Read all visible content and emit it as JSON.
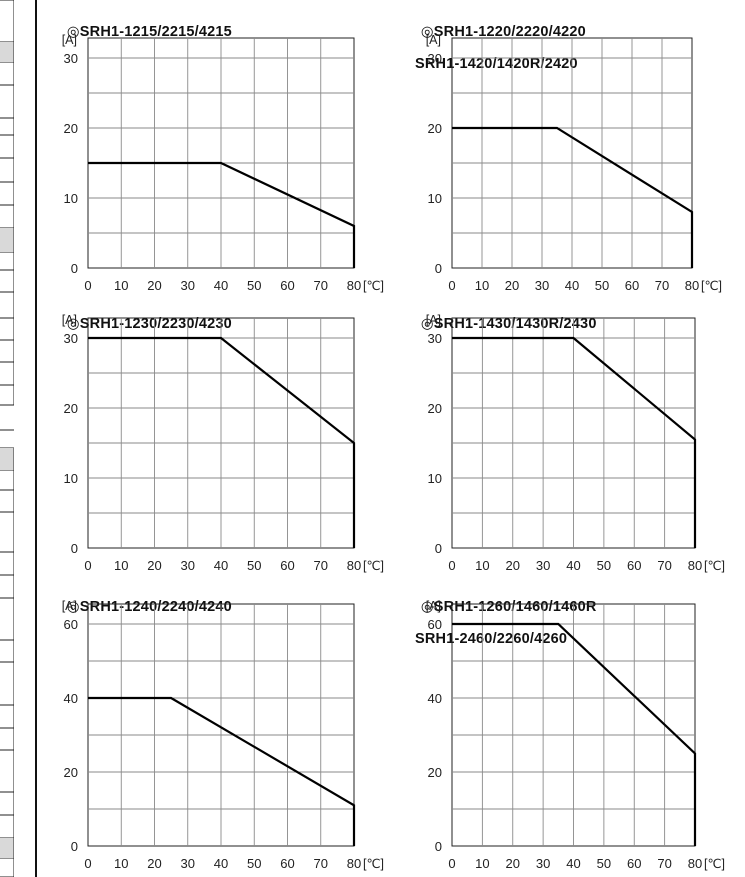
{
  "charts_meta": {
    "axis_unit_y": "[A]",
    "axis_unit_x": "[℃]"
  },
  "chart_data": [
    {
      "type": "line",
      "title": "◎SRH1-1215/2215/4215",
      "subtitle": "",
      "ylabel": "[A]",
      "xlabel": "[℃]",
      "xlim": [
        0,
        80
      ],
      "ylim": [
        0,
        30
      ],
      "xticks": [
        0,
        10,
        20,
        30,
        40,
        50,
        60,
        70,
        80
      ],
      "yticks": [
        0,
        10,
        20,
        30
      ],
      "grid": true,
      "series": [
        {
          "x": [
            0,
            40,
            80,
            80
          ],
          "y": [
            15,
            15,
            6,
            0
          ]
        }
      ]
    },
    {
      "type": "line",
      "title": "◎SRH1-1220/2220/4220",
      "subtitle": "SRH1-1420/1420R/2420",
      "ylabel": "[A]",
      "xlabel": "[℃]",
      "xlim": [
        0,
        80
      ],
      "ylim": [
        0,
        30
      ],
      "xticks": [
        0,
        10,
        20,
        30,
        40,
        50,
        60,
        70,
        80
      ],
      "yticks": [
        0,
        10,
        20,
        30
      ],
      "grid": true,
      "series": [
        {
          "x": [
            0,
            35,
            80,
            80
          ],
          "y": [
            20,
            20,
            8,
            0
          ]
        }
      ]
    },
    {
      "type": "line",
      "title": "◎SRH1-1230/2230/4230",
      "subtitle": "",
      "ylabel": "[A]",
      "xlabel": "[℃]",
      "xlim": [
        0,
        80
      ],
      "ylim": [
        0,
        30
      ],
      "xticks": [
        0,
        10,
        20,
        30,
        40,
        50,
        60,
        70,
        80
      ],
      "yticks": [
        0,
        10,
        20,
        30
      ],
      "grid": true,
      "series": [
        {
          "x": [
            0,
            40,
            80,
            80
          ],
          "y": [
            30,
            30,
            15,
            0
          ]
        }
      ]
    },
    {
      "type": "line",
      "title": "◎SRH1-1430/1430R/2430",
      "subtitle": "",
      "ylabel": "[A]",
      "xlabel": "[℃]",
      "xlim": [
        0,
        80
      ],
      "ylim": [
        0,
        30
      ],
      "xticks": [
        0,
        10,
        20,
        30,
        40,
        50,
        60,
        70,
        80
      ],
      "yticks": [
        0,
        10,
        20,
        30
      ],
      "grid": true,
      "series": [
        {
          "x": [
            0,
            40,
            80,
            80
          ],
          "y": [
            30,
            30,
            15.5,
            0
          ]
        }
      ]
    },
    {
      "type": "line",
      "title": "◎SRH1-1240/2240/4240",
      "subtitle": "",
      "ylabel": "[A]",
      "xlabel": "[℃]",
      "xlim": [
        0,
        80
      ],
      "ylim": [
        0,
        60
      ],
      "xticks": [
        0,
        10,
        20,
        30,
        40,
        50,
        60,
        70,
        80
      ],
      "yticks": [
        0,
        20,
        40,
        60
      ],
      "grid": true,
      "series": [
        {
          "x": [
            0,
            25,
            80,
            80
          ],
          "y": [
            40,
            40,
            11,
            0
          ]
        }
      ]
    },
    {
      "type": "line",
      "title": "◎SRH1-1260/1460/1460R",
      "subtitle": "SRH1-2460/2260/4260",
      "ylabel": "[A]",
      "xlabel": "[℃]",
      "xlim": [
        0,
        80
      ],
      "ylim": [
        0,
        60
      ],
      "xticks": [
        0,
        10,
        20,
        30,
        40,
        50,
        60,
        70,
        80
      ],
      "yticks": [
        0,
        20,
        40,
        60
      ],
      "grid": true,
      "series": [
        {
          "x": [
            0,
            35,
            80,
            80
          ],
          "y": [
            60,
            60,
            25,
            0
          ]
        }
      ]
    }
  ]
}
